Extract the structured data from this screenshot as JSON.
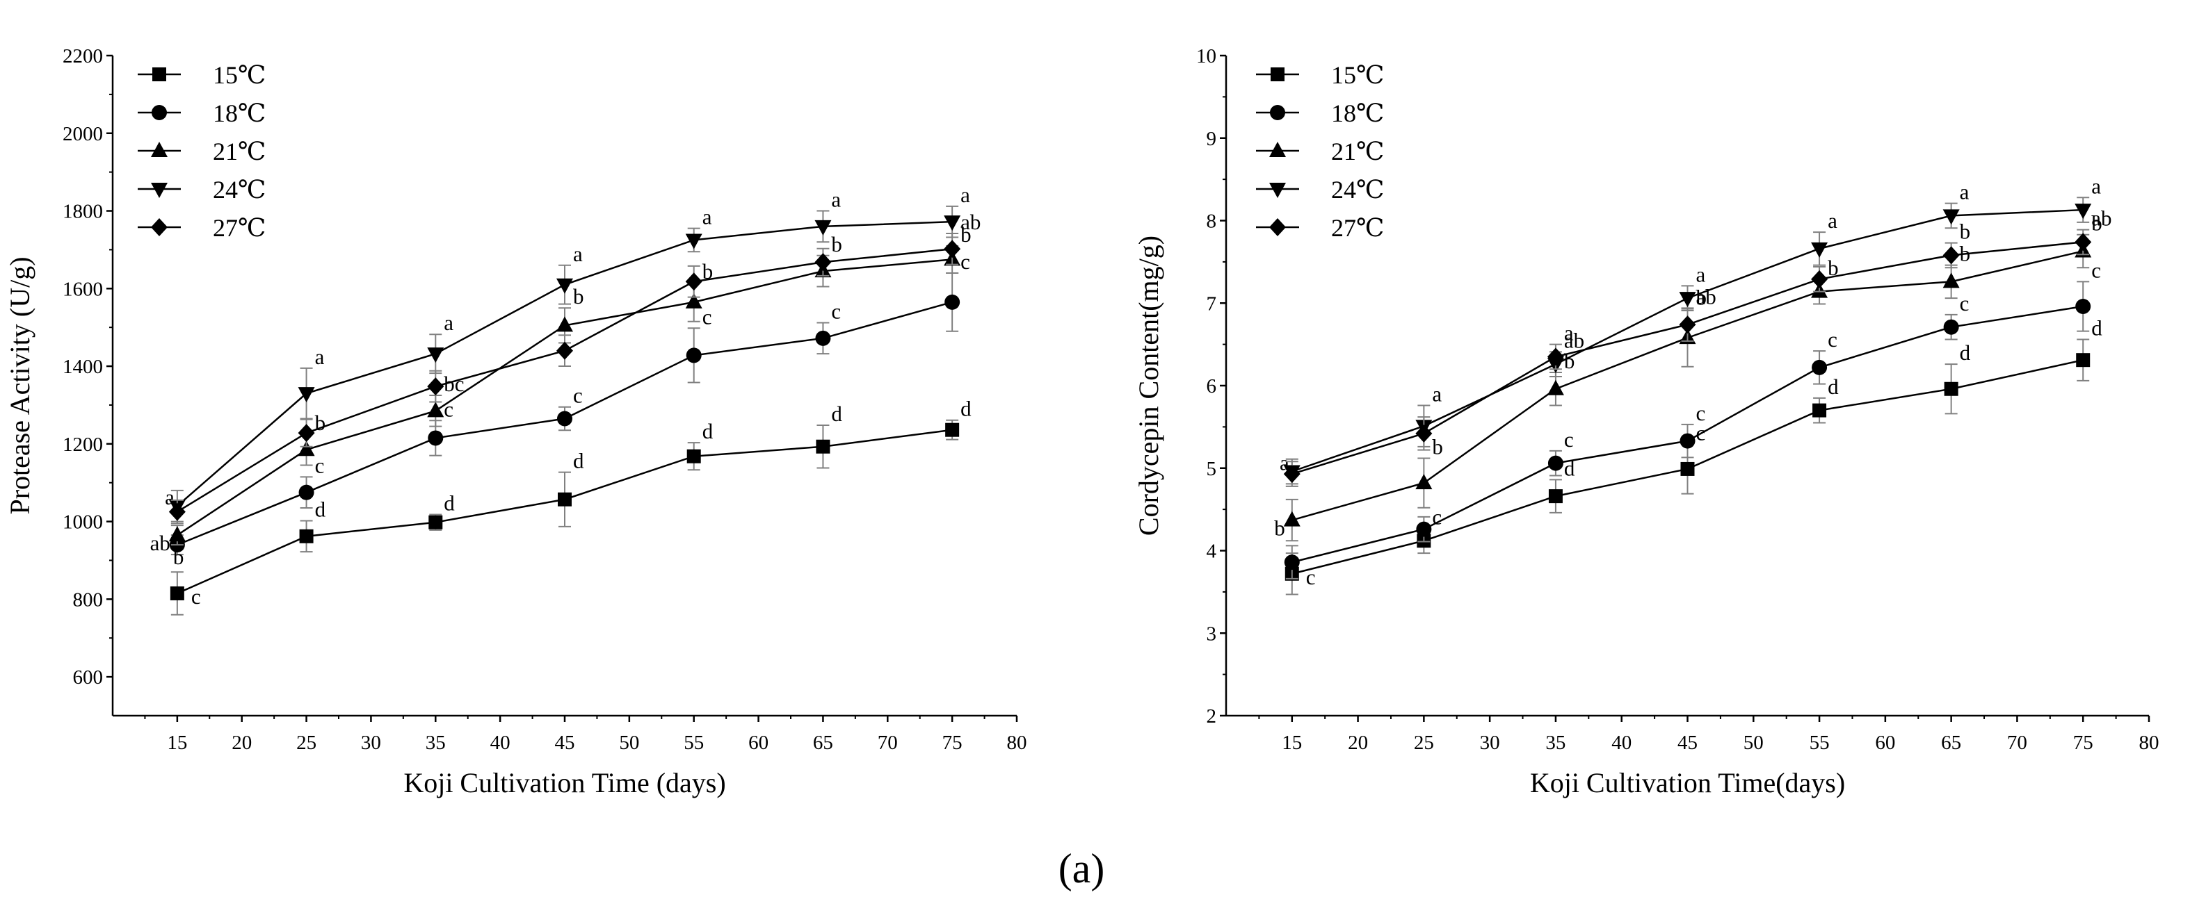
{
  "figure": {
    "panel_label": "(a)",
    "colors": {
      "line": "#000000",
      "errorbar": "#808080",
      "background": "#ffffff"
    }
  },
  "legend_labels": [
    "15℃",
    "18℃",
    "21℃",
    "24℃",
    "27℃"
  ],
  "chart_data": [
    {
      "type": "line",
      "xlabel": "Koji Cultivation Time (days)",
      "ylabel": "Protease Activity (U/g)",
      "xlim": [
        10,
        80
      ],
      "ylim": [
        500,
        2200
      ],
      "x_ticks": [
        15,
        20,
        25,
        30,
        35,
        40,
        45,
        50,
        55,
        60,
        65,
        70,
        75,
        80
      ],
      "y_ticks": [
        600,
        800,
        1000,
        1200,
        1400,
        1600,
        1800,
        2000,
        2200
      ],
      "grid": false,
      "legend_position": "top-left",
      "x": [
        15,
        25,
        35,
        45,
        55,
        65,
        75
      ],
      "series": [
        {
          "name": "15℃",
          "marker": "square",
          "values": [
            815,
            962,
            998,
            1057,
            1168,
            1193,
            1236
          ],
          "errors": [
            55,
            40,
            20,
            70,
            35,
            55,
            25
          ],
          "letters": [
            "c",
            "d",
            "d",
            "d",
            "d",
            "d",
            "d"
          ]
        },
        {
          "name": "18℃",
          "marker": "circle",
          "values": [
            940,
            1075,
            1215,
            1265,
            1428,
            1472,
            1565
          ],
          "errors": [
            25,
            40,
            45,
            30,
            70,
            40,
            75
          ],
          "letters": [
            "b",
            "c",
            "c",
            "c",
            "c",
            "c",
            "c"
          ]
        },
        {
          "name": "21℃",
          "marker": "triangle-up",
          "values": [
            965,
            1185,
            1285,
            1505,
            1565,
            1645,
            1675
          ],
          "errors": [
            25,
            40,
            40,
            45,
            50,
            40,
            35
          ],
          "letters": [
            "ab",
            "b",
            "bc",
            "b",
            "b",
            "b",
            "b"
          ]
        },
        {
          "name": "24℃",
          "marker": "triangle-down",
          "values": [
            1040,
            1330,
            1432,
            1610,
            1725,
            1760,
            1772
          ],
          "errors": [
            40,
            65,
            50,
            50,
            30,
            40,
            40
          ],
          "letters": [
            "a",
            "a",
            "a",
            "a",
            "a",
            "a",
            "a"
          ]
        },
        {
          "name": "27℃",
          "marker": "diamond",
          "values": [
            1025,
            1228,
            1348,
            1440,
            1618,
            1668,
            1702
          ],
          "errors": [
            30,
            35,
            40,
            40,
            40,
            35,
            40
          ],
          "letters": [
            "",
            "",
            "",
            "",
            "",
            "",
            "ab"
          ]
        }
      ]
    },
    {
      "type": "line",
      "xlabel": "Koji Cultivation Time(days)",
      "ylabel": "Cordycepin Content(mg/g)",
      "xlim": [
        10,
        80
      ],
      "ylim": [
        2,
        10
      ],
      "x_ticks": [
        15,
        20,
        25,
        30,
        35,
        40,
        45,
        50,
        55,
        60,
        65,
        70,
        75,
        80
      ],
      "y_ticks": [
        2,
        3,
        4,
        5,
        6,
        7,
        8,
        9,
        10
      ],
      "grid": false,
      "legend_position": "top-left",
      "x": [
        15,
        25,
        35,
        45,
        55,
        65,
        75
      ],
      "series": [
        {
          "name": "15℃",
          "marker": "square",
          "values": [
            3.72,
            4.12,
            4.66,
            4.99,
            5.7,
            5.96,
            6.31
          ],
          "errors": [
            0.25,
            0.15,
            0.2,
            0.3,
            0.15,
            0.3,
            0.25
          ],
          "letters": [
            "c",
            "c",
            "d",
            "c",
            "d",
            "d",
            "d"
          ]
        },
        {
          "name": "18℃",
          "marker": "circle",
          "values": [
            3.86,
            4.26,
            5.06,
            5.33,
            6.22,
            6.71,
            6.96
          ],
          "errors": [
            0.2,
            0.15,
            0.15,
            0.2,
            0.2,
            0.15,
            0.3
          ],
          "letters": [
            "",
            "",
            "c",
            "c",
            "c",
            "c",
            "c"
          ]
        },
        {
          "name": "21℃",
          "marker": "triangle-up",
          "values": [
            4.37,
            4.82,
            5.96,
            6.58,
            7.14,
            7.26,
            7.63
          ],
          "errors": [
            0.25,
            0.3,
            0.2,
            0.35,
            0.15,
            0.2,
            0.2
          ],
          "letters": [
            "b",
            "b",
            "b",
            "b",
            "b",
            "b",
            "b"
          ]
        },
        {
          "name": "24℃",
          "marker": "triangle-down",
          "values": [
            4.96,
            5.51,
            6.26,
            7.06,
            7.66,
            8.06,
            8.13
          ],
          "errors": [
            0.15,
            0.25,
            0.15,
            0.15,
            0.2,
            0.15,
            0.15
          ],
          "letters": [
            "a",
            "a",
            "ab",
            "a",
            "a",
            "a",
            "a"
          ]
        },
        {
          "name": "27℃",
          "marker": "diamond",
          "values": [
            4.93,
            5.42,
            6.35,
            6.74,
            7.29,
            7.58,
            7.74
          ],
          "errors": [
            0.15,
            0.2,
            0.15,
            0.2,
            0.15,
            0.15,
            0.15
          ],
          "letters": [
            "",
            "",
            "a",
            "ab",
            "",
            "b",
            "ab"
          ]
        }
      ]
    }
  ]
}
